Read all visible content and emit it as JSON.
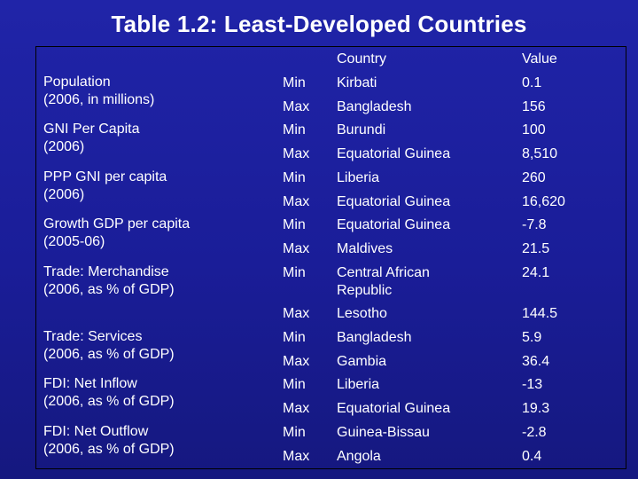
{
  "title": "Table 1.2: Least-Developed Countries",
  "headers": {
    "country": "Country",
    "value": "Value"
  },
  "rows": [
    {
      "indicator": [
        "Population",
        "(2006, in millions)"
      ],
      "entries": [
        {
          "type": "Min",
          "country": [
            "Kirbati"
          ],
          "value": "0.1"
        },
        {
          "type": "Max",
          "country": [
            "Bangladesh"
          ],
          "value": "156"
        }
      ]
    },
    {
      "indicator": [
        "GNI Per Capita",
        "(2006)"
      ],
      "entries": [
        {
          "type": "Min",
          "country": [
            "Burundi"
          ],
          "value": "100"
        },
        {
          "type": "Max",
          "country": [
            "Equatorial Guinea"
          ],
          "value": "8,510"
        }
      ]
    },
    {
      "indicator": [
        "PPP GNI per capita",
        "(2006)"
      ],
      "entries": [
        {
          "type": "Min",
          "country": [
            "Liberia"
          ],
          "value": "260"
        },
        {
          "type": "Max",
          "country": [
            "Equatorial Guinea"
          ],
          "value": "16,620"
        }
      ]
    },
    {
      "indicator": [
        "Growth GDP per capita",
        "(2005-06)"
      ],
      "entries": [
        {
          "type": "Min",
          "country": [
            "Equatorial Guinea"
          ],
          "value": "-7.8"
        },
        {
          "type": "Max",
          "country": [
            "Maldives"
          ],
          "value": "21.5"
        }
      ]
    },
    {
      "indicator": [
        "Trade: Merchandise",
        "(2006, as % of GDP)"
      ],
      "entries": [
        {
          "type": "Min",
          "country": [
            "Central African",
            "Republic"
          ],
          "value": "24.1"
        },
        {
          "type": "Max",
          "country": [
            "Lesotho"
          ],
          "value": "144.5"
        }
      ]
    },
    {
      "indicator": [
        "Trade: Services",
        "(2006, as % of GDP)"
      ],
      "entries": [
        {
          "type": "Min",
          "country": [
            "Bangladesh"
          ],
          "value": "5.9"
        },
        {
          "type": "Max",
          "country": [
            "Gambia"
          ],
          "value": "36.4"
        }
      ]
    },
    {
      "indicator": [
        "FDI: Net Inflow",
        "(2006, as % of GDP)"
      ],
      "entries": [
        {
          "type": "Min",
          "country": [
            "Liberia"
          ],
          "value": "-13"
        },
        {
          "type": "Max",
          "country": [
            "Equatorial Guinea"
          ],
          "value": "19.3"
        }
      ]
    },
    {
      "indicator": [
        "FDI: Net Outflow",
        "(2006, as % of GDP)"
      ],
      "entries": [
        {
          "type": "Min",
          "country": [
            "Guinea-Bissau"
          ],
          "value": "-2.8"
        },
        {
          "type": "Max",
          "country": [
            "Angola"
          ],
          "value": "0.4"
        }
      ]
    }
  ]
}
